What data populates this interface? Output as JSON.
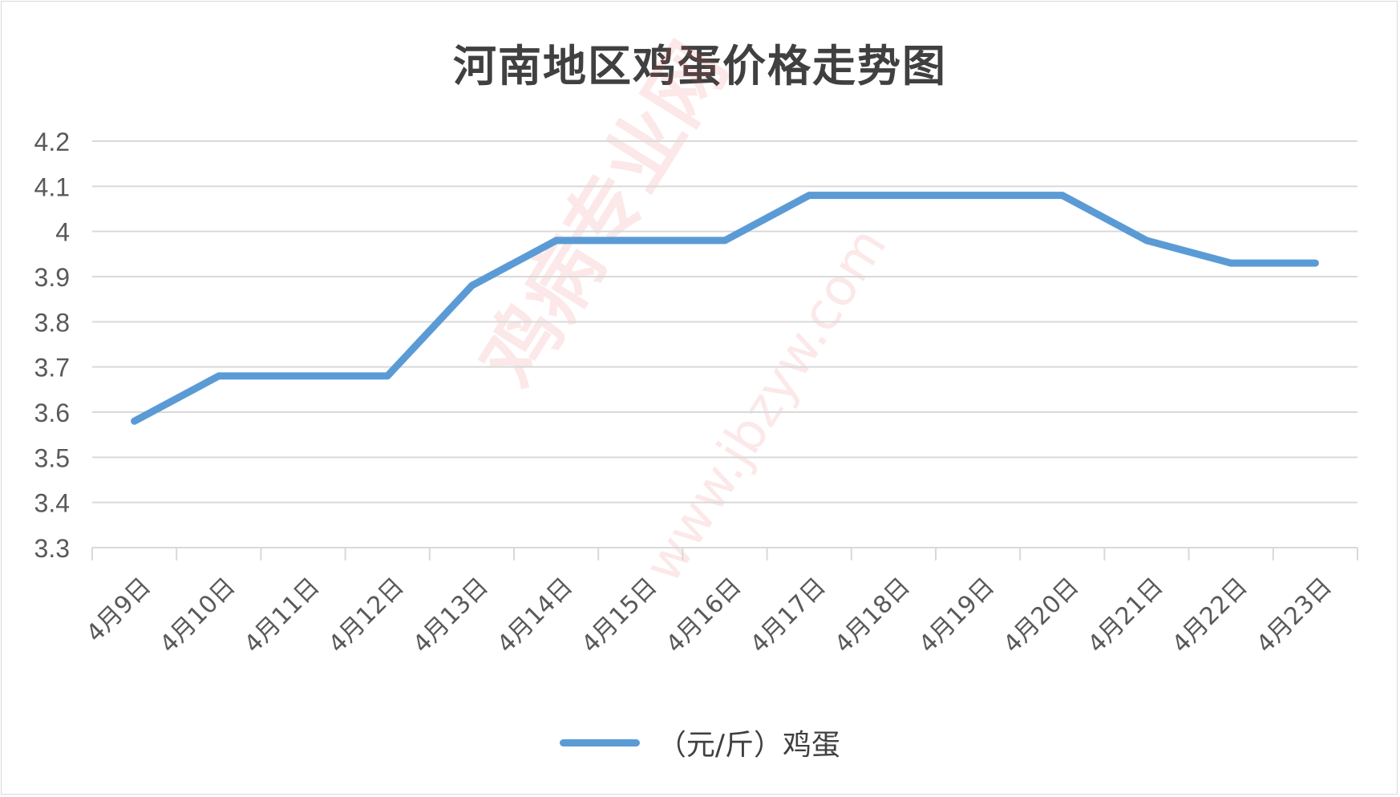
{
  "chart_data": {
    "type": "line",
    "title": "河南地区鸡蛋价格走势图",
    "categories": [
      "4月9日",
      "4月10日",
      "4月11日",
      "4月12日",
      "4月13日",
      "4月14日",
      "4月15日",
      "4月16日",
      "4月17日",
      "4月18日",
      "4月19日",
      "4月20日",
      "4月21日",
      "4月22日",
      "4月23日"
    ],
    "series": [
      {
        "name": "（元/斤）鸡蛋",
        "color": "#5b9bd5",
        "values": [
          3.58,
          3.68,
          3.68,
          3.68,
          3.88,
          3.98,
          3.98,
          3.98,
          4.08,
          4.08,
          4.08,
          4.08,
          3.98,
          3.93,
          3.93
        ]
      }
    ],
    "yticks": [
      "3.3",
      "3.4",
      "3.5",
      "3.6",
      "3.7",
      "3.8",
      "3.9",
      "4",
      "4.1",
      "4.2"
    ],
    "ylim": [
      3.3,
      4.2
    ],
    "grid": true,
    "legend": "bottom"
  },
  "watermark": {
    "main": "鸡病专业网",
    "url": "www.jbzyw.com"
  }
}
